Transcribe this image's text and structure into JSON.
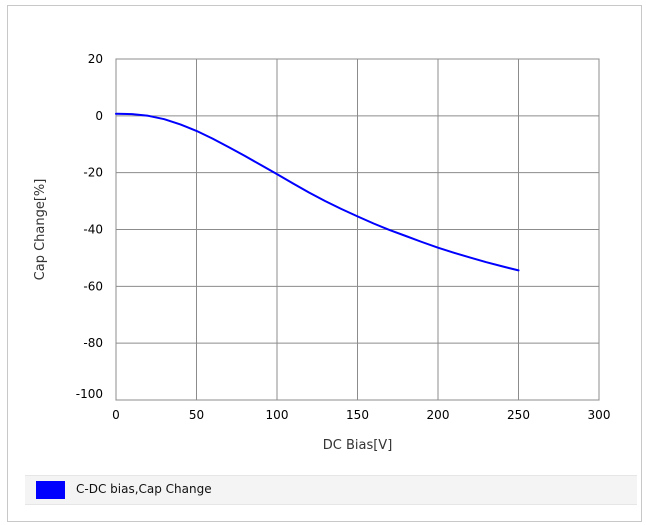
{
  "chart_data": {
    "type": "line",
    "xlabel": "DC Bias[V]",
    "ylabel": "Cap Change[%]",
    "xlim": [
      0,
      300
    ],
    "ylim": [
      -100,
      20
    ],
    "xticks": [
      "0",
      "50",
      "100",
      "150",
      "200",
      "250",
      "300"
    ],
    "yticks": [
      "20",
      "0",
      "-20",
      "-40",
      "-60",
      "-80",
      "-100"
    ],
    "grid": true,
    "legend": "bottom",
    "series": [
      {
        "name": "C-DC bias,Cap Change",
        "color": "#0000ff",
        "x": [
          0,
          10,
          20,
          30,
          40,
          50,
          60,
          70,
          80,
          90,
          100,
          110,
          120,
          130,
          140,
          150,
          160,
          170,
          180,
          190,
          200,
          210,
          220,
          230,
          240,
          250
        ],
        "y": [
          0.7,
          0.6,
          0.0,
          -1.2,
          -3.0,
          -5.3,
          -8.0,
          -11.0,
          -14.1,
          -17.3,
          -20.5,
          -23.8,
          -27.0,
          -30.0,
          -32.8,
          -35.4,
          -37.9,
          -40.2,
          -42.3,
          -44.4,
          -46.4,
          -48.2,
          -49.9,
          -51.5,
          -53.0,
          -54.4
        ]
      }
    ]
  }
}
